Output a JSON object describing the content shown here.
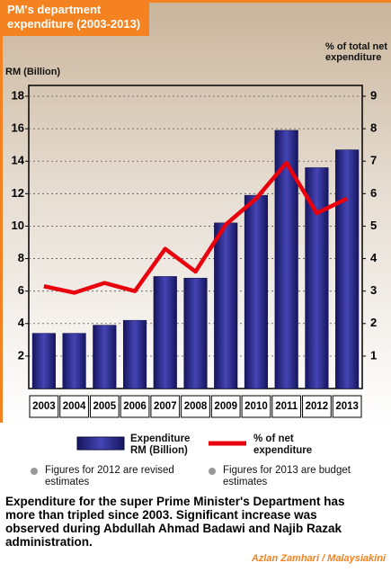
{
  "chart_data": {
    "type": "bar",
    "title": "PM's department expenditure (2003-2013)",
    "y_label": "RM (Billion)",
    "y2_label": "% of total net expenditure",
    "categories": [
      "2003",
      "2004",
      "2005",
      "2006",
      "2007",
      "2008",
      "2009",
      "2010",
      "2011",
      "2012",
      "2013"
    ],
    "series": [
      {
        "name": "Expenditure RM (Billion)",
        "type": "bar",
        "axis": "y",
        "color": "#2a2a8c",
        "values": [
          3.4,
          3.4,
          3.9,
          4.2,
          6.9,
          6.8,
          10.2,
          11.9,
          15.9,
          13.6,
          14.7
        ]
      },
      {
        "name": "% of net expenditure",
        "type": "line",
        "axis": "y2",
        "color": "#e8000d",
        "values": [
          3.15,
          2.95,
          3.25,
          3.0,
          4.3,
          3.6,
          5.05,
          5.85,
          6.95,
          5.4,
          5.85
        ]
      }
    ],
    "ylim": [
      0,
      18
    ],
    "yticks": [
      2,
      4,
      6,
      8,
      10,
      12,
      14,
      16,
      18
    ],
    "y2lim": [
      0,
      9
    ],
    "y2ticks": [
      1,
      2,
      3,
      4,
      5,
      6,
      7,
      8,
      9
    ],
    "grid": true,
    "notes": [
      "Figures for 2012 are revised estimates",
      "Figures for 2013 are budget estimates"
    ],
    "caption": "Expenditure for the super Prime Minister's Department has more than tripled since 2003. Significant increase was observed during Abdullah Ahmad Badawi and Najib Razak administration.",
    "credit": "Azlan Zamhari / Malaysiakini"
  }
}
